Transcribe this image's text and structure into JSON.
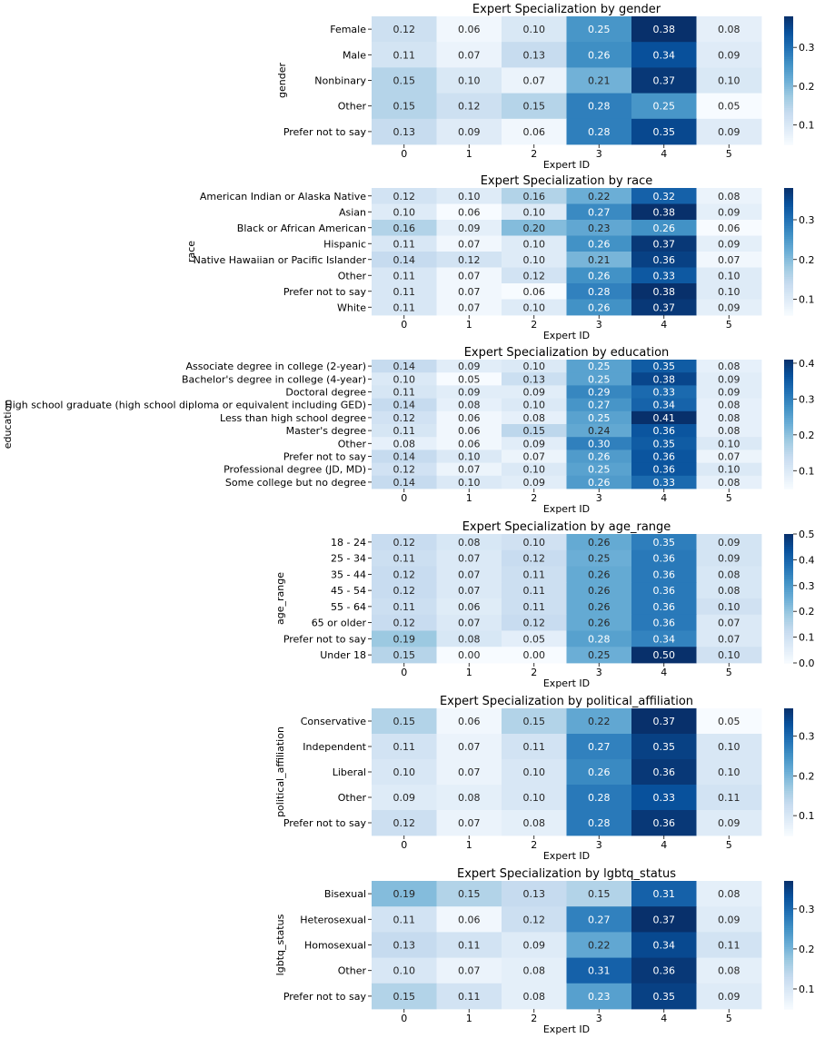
{
  "colors": {
    "low": "#f7fbff",
    "high": "#08306b"
  },
  "chart_data": [
    {
      "type": "heatmap",
      "title": "Expert Specialization by gender",
      "xlabel": "Expert ID",
      "ylabel": "gender",
      "x": [
        "0",
        "1",
        "2",
        "3",
        "4",
        "5"
      ],
      "rows": [
        "Female",
        "Male",
        "Nonbinary",
        "Other",
        "Prefer not to say"
      ],
      "values": [
        [
          0.12,
          0.06,
          0.1,
          0.25,
          0.38,
          0.08
        ],
        [
          0.11,
          0.07,
          0.13,
          0.26,
          0.34,
          0.09
        ],
        [
          0.15,
          0.1,
          0.07,
          0.21,
          0.37,
          0.1
        ],
        [
          0.15,
          0.12,
          0.15,
          0.28,
          0.25,
          0.05
        ],
        [
          0.13,
          0.09,
          0.06,
          0.28,
          0.35,
          0.09
        ]
      ],
      "colorbar": {
        "vmin": 0.05,
        "vmax": 0.38,
        "ticks": [
          "0.1",
          "0.2",
          "0.3"
        ]
      }
    },
    {
      "type": "heatmap",
      "title": "Expert Specialization by race",
      "xlabel": "Expert ID",
      "ylabel": "race",
      "x": [
        "0",
        "1",
        "2",
        "3",
        "4",
        "5"
      ],
      "rows": [
        "American Indian or Alaska Native",
        "Asian",
        "Black or African American",
        "Hispanic",
        "Native Hawaiian or Pacific Islander",
        "Other",
        "Prefer not to say",
        "White"
      ],
      "values": [
        [
          0.12,
          0.1,
          0.16,
          0.22,
          0.32,
          0.08
        ],
        [
          0.1,
          0.06,
          0.1,
          0.27,
          0.38,
          0.09
        ],
        [
          0.16,
          0.09,
          0.2,
          0.23,
          0.26,
          0.06
        ],
        [
          0.11,
          0.07,
          0.1,
          0.26,
          0.37,
          0.09
        ],
        [
          0.14,
          0.12,
          0.1,
          0.21,
          0.36,
          0.07
        ],
        [
          0.11,
          0.07,
          0.12,
          0.26,
          0.33,
          0.1
        ],
        [
          0.11,
          0.07,
          0.06,
          0.28,
          0.38,
          0.1
        ],
        [
          0.11,
          0.07,
          0.1,
          0.26,
          0.37,
          0.09
        ]
      ],
      "colorbar": {
        "vmin": 0.06,
        "vmax": 0.38,
        "ticks": [
          "0.1",
          "0.2",
          "0.3"
        ]
      }
    },
    {
      "type": "heatmap",
      "title": "Expert Specialization by education",
      "xlabel": "Expert ID",
      "ylabel": "education",
      "x": [
        "0",
        "1",
        "2",
        "3",
        "4",
        "5"
      ],
      "rows": [
        "Associate degree in college (2-year)",
        "Bachelor's degree in college (4-year)",
        "Doctoral degree",
        "High school graduate (high school diploma or equivalent including GED)",
        "Less than high school degree",
        "Master's degree",
        "Other",
        "Prefer not to say",
        "Professional degree (JD, MD)",
        "Some college but no degree"
      ],
      "values": [
        [
          0.14,
          0.09,
          0.1,
          0.25,
          0.35,
          0.08
        ],
        [
          0.1,
          0.05,
          0.13,
          0.25,
          0.38,
          0.09
        ],
        [
          0.11,
          0.09,
          0.09,
          0.29,
          0.33,
          0.09
        ],
        [
          0.14,
          0.08,
          0.1,
          0.27,
          0.34,
          0.08
        ],
        [
          0.12,
          0.06,
          0.08,
          0.25,
          0.41,
          0.08
        ],
        [
          0.11,
          0.06,
          0.15,
          0.24,
          0.36,
          0.08
        ],
        [
          0.08,
          0.06,
          0.09,
          0.3,
          0.35,
          0.1
        ],
        [
          0.14,
          0.1,
          0.07,
          0.26,
          0.36,
          0.07
        ],
        [
          0.12,
          0.07,
          0.1,
          0.25,
          0.36,
          0.1
        ],
        [
          0.14,
          0.1,
          0.09,
          0.26,
          0.33,
          0.08
        ]
      ],
      "colorbar": {
        "vmin": 0.05,
        "vmax": 0.41,
        "ticks": [
          "0.1",
          "0.2",
          "0.3",
          "0.4"
        ]
      }
    },
    {
      "type": "heatmap",
      "title": "Expert Specialization by age_range",
      "xlabel": "Expert ID",
      "ylabel": "age_range",
      "x": [
        "0",
        "1",
        "2",
        "3",
        "4",
        "5"
      ],
      "rows": [
        "18 - 24",
        "25 - 34",
        "35 - 44",
        "45 - 54",
        "55 - 64",
        "65 or older",
        "Prefer not to say",
        "Under 18"
      ],
      "values": [
        [
          0.12,
          0.08,
          0.1,
          0.26,
          0.35,
          0.09
        ],
        [
          0.11,
          0.07,
          0.12,
          0.25,
          0.36,
          0.09
        ],
        [
          0.12,
          0.07,
          0.11,
          0.26,
          0.36,
          0.08
        ],
        [
          0.12,
          0.07,
          0.11,
          0.26,
          0.36,
          0.08
        ],
        [
          0.11,
          0.06,
          0.11,
          0.26,
          0.36,
          0.1
        ],
        [
          0.12,
          0.07,
          0.12,
          0.26,
          0.36,
          0.07
        ],
        [
          0.19,
          0.08,
          0.05,
          0.28,
          0.34,
          0.07
        ],
        [
          0.15,
          0.0,
          0.0,
          0.25,
          0.5,
          0.1
        ]
      ],
      "colorbar": {
        "vmin": 0.0,
        "vmax": 0.5,
        "ticks": [
          "0.0",
          "0.1",
          "0.2",
          "0.3",
          "0.4",
          "0.5"
        ]
      }
    },
    {
      "type": "heatmap",
      "title": "Expert Specialization by political_affiliation",
      "xlabel": "Expert ID",
      "ylabel": "political_affiliation",
      "x": [
        "0",
        "1",
        "2",
        "3",
        "4",
        "5"
      ],
      "rows": [
        "Conservative",
        "Independent",
        "Liberal",
        "Other",
        "Prefer not to say"
      ],
      "values": [
        [
          0.15,
          0.06,
          0.15,
          0.22,
          0.37,
          0.05
        ],
        [
          0.11,
          0.07,
          0.11,
          0.27,
          0.35,
          0.1
        ],
        [
          0.1,
          0.07,
          0.1,
          0.26,
          0.36,
          0.1
        ],
        [
          0.09,
          0.08,
          0.1,
          0.28,
          0.33,
          0.11
        ],
        [
          0.12,
          0.07,
          0.08,
          0.28,
          0.36,
          0.09
        ]
      ],
      "colorbar": {
        "vmin": 0.05,
        "vmax": 0.37,
        "ticks": [
          "0.1",
          "0.2",
          "0.3"
        ]
      }
    },
    {
      "type": "heatmap",
      "title": "Expert Specialization by lgbtq_status",
      "xlabel": "Expert ID",
      "ylabel": "lgbtq_status",
      "x": [
        "0",
        "1",
        "2",
        "3",
        "4",
        "5"
      ],
      "rows": [
        "Bisexual",
        "Heterosexual",
        "Homosexual",
        "Other",
        "Prefer not to say"
      ],
      "values": [
        [
          0.19,
          0.15,
          0.13,
          0.15,
          0.31,
          0.08
        ],
        [
          0.11,
          0.06,
          0.12,
          0.27,
          0.37,
          0.09
        ],
        [
          0.13,
          0.11,
          0.09,
          0.22,
          0.34,
          0.11
        ],
        [
          0.1,
          0.07,
          0.08,
          0.31,
          0.36,
          0.08
        ],
        [
          0.15,
          0.11,
          0.08,
          0.23,
          0.35,
          0.09
        ]
      ],
      "colorbar": {
        "vmin": 0.05,
        "vmax": 0.37,
        "ticks": [
          "0.1",
          "0.2",
          "0.3"
        ]
      }
    }
  ]
}
